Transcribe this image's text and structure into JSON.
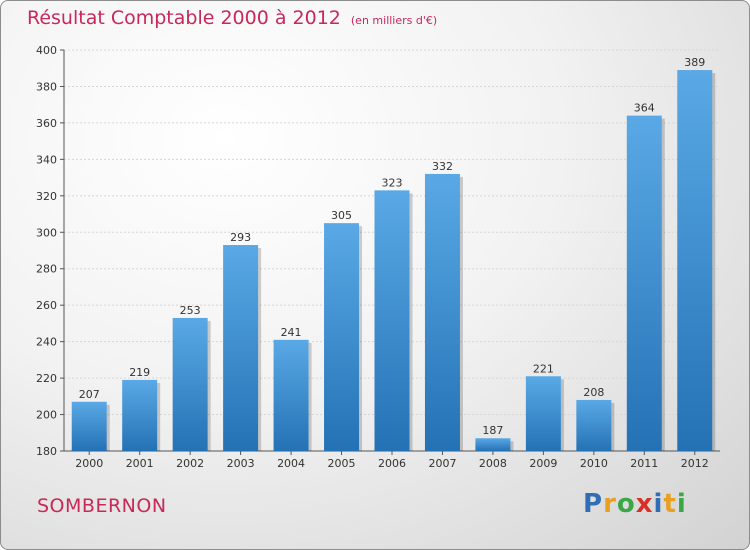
{
  "header": {
    "title": "Résultat Comptable 2000 à 2012",
    "unit": "(en milliers d'€)"
  },
  "footer": {
    "commune": "SOMBERNON",
    "logo_letters": [
      "P",
      "r",
      "o",
      "x",
      "i",
      "t",
      "i"
    ],
    "logo_colors": [
      "#2f6db5",
      "#e8a020",
      "#3aa847",
      "#d93025",
      "#2f6db5",
      "#e8a020",
      "#3aa847"
    ]
  },
  "colors": {
    "bar_top": "#5aa9e6",
    "bar_bottom": "#2472b4",
    "accent": "#c8285a"
  },
  "chart_data": {
    "type": "bar",
    "title": "Résultat Comptable 2000 à 2012",
    "xlabel": "",
    "ylabel": "",
    "categories": [
      "2000",
      "2001",
      "2002",
      "2003",
      "2004",
      "2005",
      "2006",
      "2007",
      "2008",
      "2009",
      "2010",
      "2011",
      "2012"
    ],
    "values": [
      207,
      219,
      253,
      293,
      241,
      305,
      323,
      332,
      187,
      221,
      208,
      364,
      389
    ],
    "ylim": [
      180,
      400
    ],
    "yticks": [
      180,
      200,
      220,
      240,
      260,
      280,
      300,
      320,
      340,
      360,
      380,
      400
    ],
    "grid": true,
    "legend": "none"
  }
}
